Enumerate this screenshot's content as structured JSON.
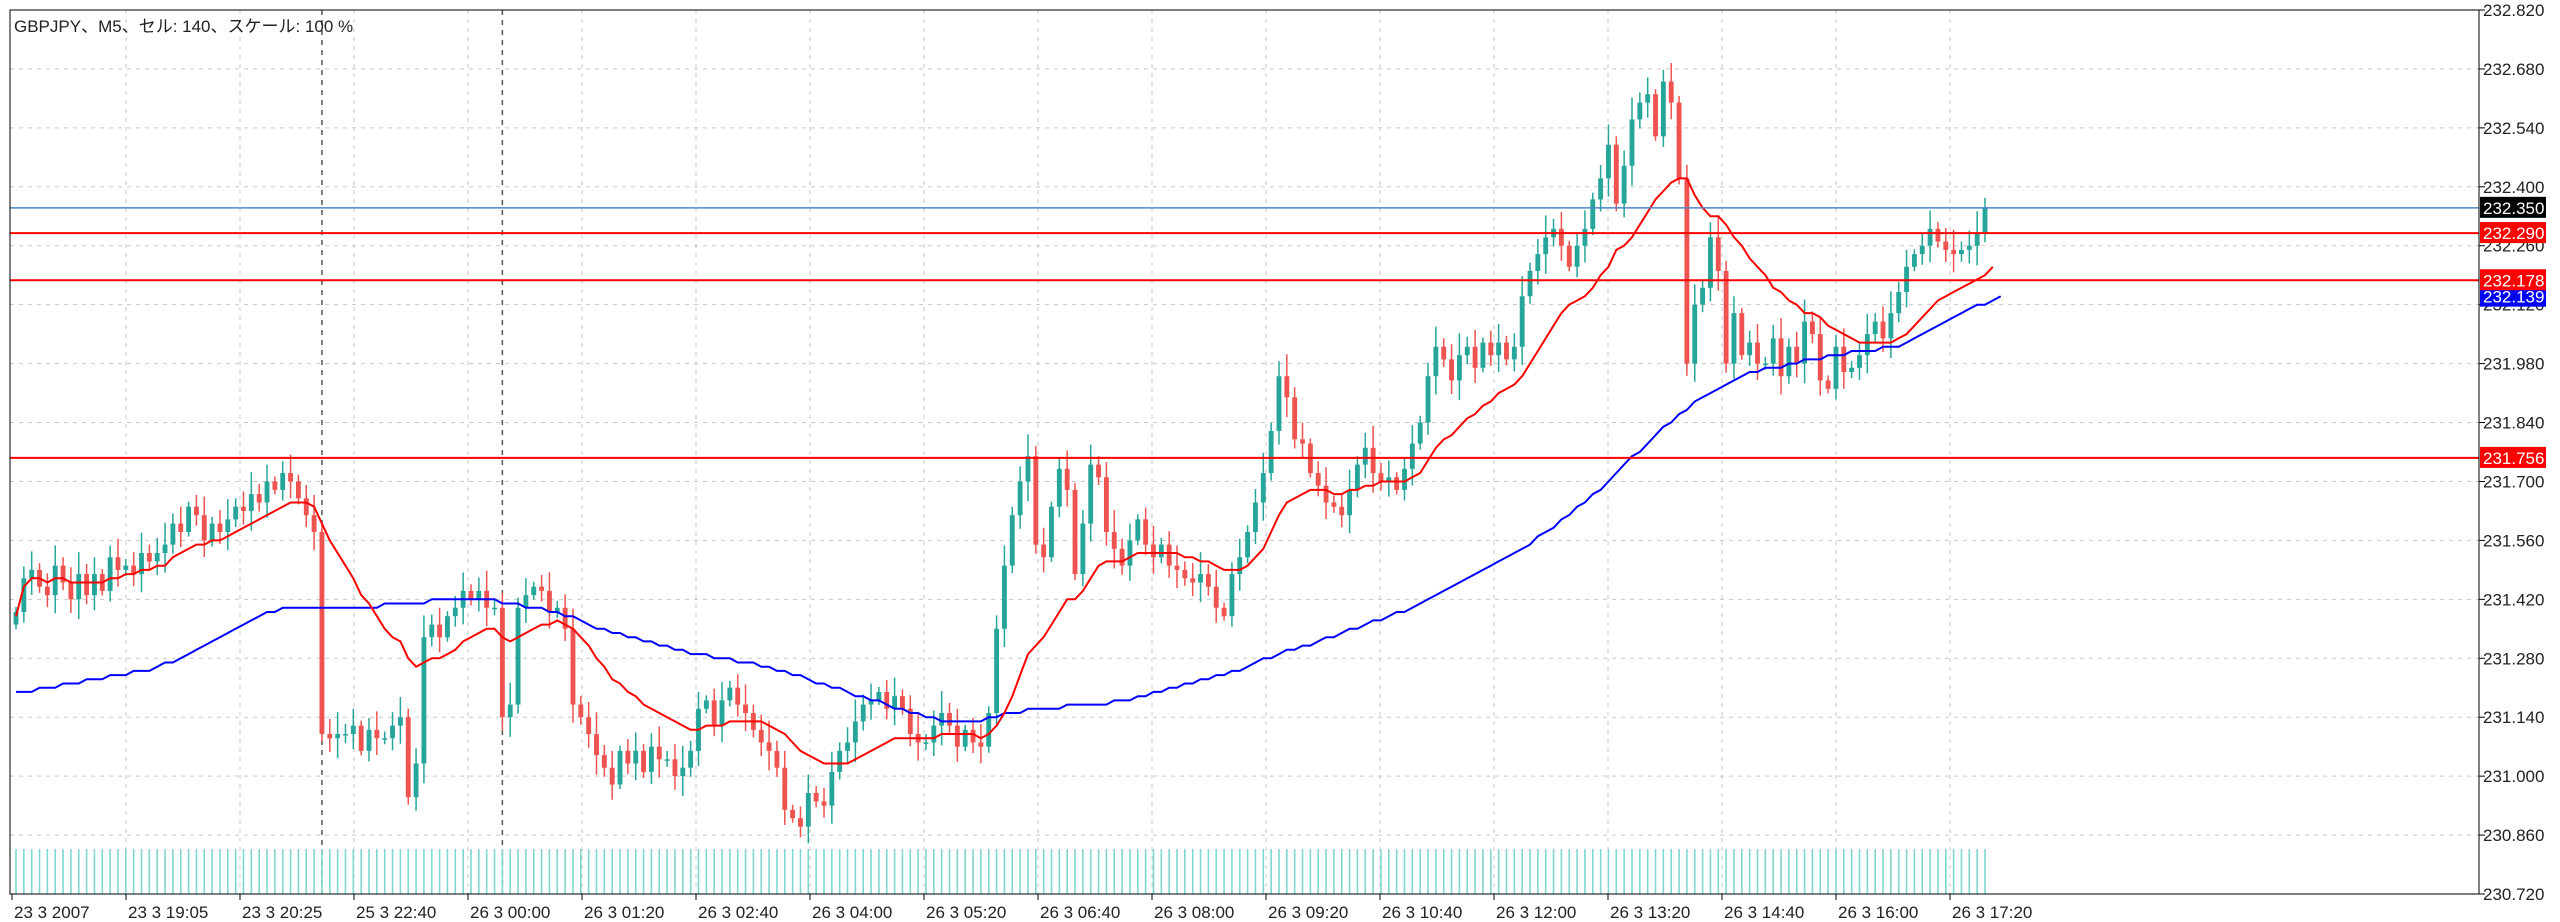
{
  "header": {
    "symbol_info": "GBPJPY、M5、セル: 140、スケール: 100 %"
  },
  "chart_data": {
    "type": "candlestick",
    "symbol": "GBPJPY",
    "timeframe": "M5",
    "ylim": [
      230.72,
      232.82
    ],
    "y_ticks": [
      "232.820",
      "232.680",
      "232.540",
      "232.400",
      "232.260",
      "232.120",
      "231.980",
      "231.840",
      "231.700",
      "231.560",
      "231.420",
      "231.280",
      "231.140",
      "231.000",
      "230.860",
      "230.720"
    ],
    "x_ticks": [
      "23 3 2007",
      "23 3 19:05",
      "23 3 20:25",
      "25 3 22:40",
      "26 3 00:00",
      "26 3 01:20",
      "26 3 02:40",
      "26 3 04:00",
      "26 3 05:20",
      "26 3 06:40",
      "26 3 08:00",
      "26 3 09:20",
      "26 3 10:40",
      "26 3 12:00",
      "26 3 13:20",
      "26 3 14:40",
      "26 3 16:00",
      "26 3 17:20"
    ],
    "grid": true,
    "period_separators_at_bar": [
      39,
      62
    ],
    "current_price": {
      "value": 232.35,
      "label": "232.350",
      "color": "#4a86c8"
    },
    "horizontal_lines": [
      {
        "value": 232.29,
        "label": "232.290",
        "color": "#ff0000"
      },
      {
        "value": 232.178,
        "label": "232.178",
        "color": "#ff0000"
      },
      {
        "value": 231.756,
        "label": "231.756",
        "color": "#ff0000"
      }
    ],
    "ma_label": {
      "value": 232.139,
      "label": "232.139",
      "color": "#0000ff"
    },
    "colors": {
      "bull": "#26a69a",
      "bear": "#ef5350",
      "fast_ma": "#ff0000",
      "slow_ma": "#0000ff",
      "volume": "#7fd7d0"
    },
    "series": [
      {
        "name": "close",
        "values": [
          231.39,
          231.47,
          231.49,
          231.45,
          231.43,
          231.5,
          231.46,
          231.42,
          231.48,
          231.43,
          231.48,
          231.44,
          231.52,
          231.49,
          231.5,
          231.48,
          231.53,
          231.51,
          231.53,
          231.55,
          231.6,
          231.58,
          231.64,
          231.62,
          231.56,
          231.6,
          231.58,
          231.61,
          231.64,
          231.63,
          231.67,
          231.65,
          231.7,
          231.68,
          231.72,
          231.7,
          231.66,
          231.62,
          231.58,
          231.1,
          231.09,
          231.1,
          231.1,
          231.12,
          231.06,
          231.11,
          231.09,
          231.09,
          231.12,
          231.14,
          230.95,
          231.03,
          231.33,
          231.36,
          231.33,
          231.38,
          231.4,
          231.44,
          231.42,
          231.44,
          231.4,
          231.4,
          231.14,
          231.17,
          231.4,
          231.43,
          231.45,
          231.44,
          231.39,
          231.4,
          231.35,
          231.17,
          231.14,
          231.1,
          231.05,
          231.02,
          230.98,
          231.06,
          231.03,
          231.06,
          231.01,
          231.07,
          231.04,
          231.04,
          231.0,
          231.02,
          231.06,
          231.16,
          231.18,
          231.12,
          231.18,
          231.21,
          231.17,
          231.15,
          231.11,
          231.08,
          231.06,
          231.02,
          230.92,
          230.9,
          230.88,
          230.96,
          230.94,
          230.93,
          231.01,
          231.06,
          231.08,
          231.13,
          231.17,
          231.18,
          231.2,
          231.16,
          231.19,
          231.16,
          231.1,
          231.08,
          231.08,
          231.12,
          231.15,
          231.12,
          231.07,
          231.11,
          231.08,
          231.07,
          231.15,
          231.35,
          231.5,
          231.62,
          231.7,
          231.76,
          231.55,
          231.52,
          231.64,
          231.73,
          231.68,
          231.48,
          231.6,
          231.74,
          231.71,
          231.58,
          231.54,
          231.5,
          231.56,
          231.61,
          231.55,
          231.52,
          231.55,
          231.5,
          231.49,
          231.47,
          231.46,
          231.48,
          231.45,
          231.4,
          231.38,
          231.48,
          231.52,
          231.58,
          231.65,
          231.72,
          231.82,
          231.95,
          231.9,
          231.8,
          231.79,
          231.72,
          231.69,
          231.65,
          231.64,
          231.62,
          231.68,
          231.74,
          231.78,
          231.72,
          231.7,
          231.71,
          231.68,
          231.73,
          231.79,
          231.84,
          231.95,
          232.02,
          231.99,
          231.94,
          232.0,
          232.02,
          231.97,
          232.03,
          232.0,
          232.03,
          231.99,
          232.02,
          232.14,
          232.2,
          232.24,
          232.28,
          232.3,
          232.26,
          232.21,
          232.26,
          232.3,
          232.37,
          232.42,
          232.5,
          232.36,
          232.45,
          232.56,
          232.6,
          232.62,
          232.52,
          232.65,
          232.6,
          232.42,
          231.98,
          232.12,
          232.16,
          232.28,
          232.2,
          231.98,
          232.1,
          232.0,
          232.03,
          231.98,
          231.98,
          232.04,
          231.95,
          232.02,
          231.98,
          232.08,
          232.05,
          231.94,
          231.92,
          232.02,
          231.96,
          231.97,
          232.0,
          232.05,
          232.08,
          232.04,
          232.1,
          232.15,
          232.21,
          232.24,
          232.26,
          232.3,
          232.27,
          232.25,
          232.24,
          232.25,
          232.26,
          232.29,
          232.35
        ]
      },
      {
        "name": "fast_ma",
        "values": [
          231.38,
          231.45,
          231.47,
          231.47,
          231.46,
          231.47,
          231.47,
          231.46,
          231.46,
          231.46,
          231.46,
          231.46,
          231.47,
          231.47,
          231.48,
          231.48,
          231.49,
          231.49,
          231.5,
          231.5,
          231.52,
          231.53,
          231.54,
          231.55,
          231.55,
          231.56,
          231.56,
          231.57,
          231.58,
          231.59,
          231.6,
          231.61,
          231.62,
          231.63,
          231.64,
          231.65,
          231.65,
          231.65,
          231.64,
          231.6,
          231.56,
          231.53,
          231.5,
          231.47,
          231.43,
          231.41,
          231.38,
          231.35,
          231.33,
          231.32,
          231.28,
          231.26,
          231.27,
          231.28,
          231.28,
          231.29,
          231.3,
          231.32,
          231.33,
          231.34,
          231.35,
          231.35,
          231.33,
          231.32,
          231.33,
          231.34,
          231.35,
          231.36,
          231.36,
          231.37,
          231.36,
          231.35,
          231.33,
          231.31,
          231.28,
          231.26,
          231.23,
          231.22,
          231.2,
          231.19,
          231.17,
          231.16,
          231.15,
          231.14,
          231.13,
          231.12,
          231.11,
          231.11,
          231.12,
          231.12,
          231.12,
          231.13,
          231.13,
          231.13,
          231.13,
          231.13,
          231.12,
          231.11,
          231.1,
          231.08,
          231.06,
          231.05,
          231.04,
          231.03,
          231.03,
          231.03,
          231.03,
          231.04,
          231.05,
          231.06,
          231.07,
          231.08,
          231.09,
          231.09,
          231.09,
          231.09,
          231.09,
          231.09,
          231.1,
          231.1,
          231.1,
          231.1,
          231.1,
          231.09,
          231.1,
          231.12,
          231.15,
          231.19,
          231.24,
          231.29,
          231.31,
          231.33,
          231.36,
          231.39,
          231.42,
          231.42,
          231.44,
          231.47,
          231.5,
          231.51,
          231.51,
          231.51,
          231.52,
          231.53,
          231.53,
          231.53,
          231.53,
          231.53,
          231.53,
          231.52,
          231.52,
          231.51,
          231.51,
          231.5,
          231.49,
          231.49,
          231.49,
          231.5,
          231.52,
          231.54,
          231.58,
          231.62,
          231.65,
          231.66,
          231.67,
          231.68,
          231.68,
          231.68,
          231.67,
          231.67,
          231.68,
          231.68,
          231.69,
          231.69,
          231.7,
          231.7,
          231.7,
          231.7,
          231.71,
          231.72,
          231.75,
          231.78,
          231.8,
          231.81,
          231.83,
          231.85,
          231.86,
          231.88,
          231.89,
          231.91,
          231.92,
          231.93,
          231.95,
          231.98,
          232.01,
          232.04,
          232.07,
          232.1,
          232.12,
          232.13,
          232.14,
          232.16,
          232.19,
          232.21,
          232.25,
          232.26,
          232.28,
          232.31,
          232.34,
          232.37,
          232.39,
          232.41,
          232.42,
          232.42,
          232.38,
          232.35,
          232.33,
          232.33,
          232.31,
          232.28,
          232.26,
          232.23,
          232.21,
          232.19,
          232.16,
          232.15,
          232.13,
          232.12,
          232.1,
          232.1,
          232.09,
          232.07,
          232.06,
          232.05,
          232.04,
          232.03,
          232.03,
          232.03,
          232.03,
          232.03,
          232.04,
          232.05,
          232.07,
          232.09,
          232.11,
          232.13,
          232.14,
          232.15,
          232.16,
          232.17,
          232.18,
          232.19,
          232.21
        ]
      },
      {
        "name": "slow_ma",
        "values": [
          231.2,
          231.2,
          231.2,
          231.21,
          231.21,
          231.21,
          231.22,
          231.22,
          231.22,
          231.23,
          231.23,
          231.23,
          231.24,
          231.24,
          231.24,
          231.25,
          231.25,
          231.25,
          231.26,
          231.27,
          231.27,
          231.28,
          231.29,
          231.3,
          231.31,
          231.32,
          231.33,
          231.34,
          231.35,
          231.36,
          231.37,
          231.38,
          231.39,
          231.39,
          231.4,
          231.4,
          231.4,
          231.4,
          231.4,
          231.4,
          231.4,
          231.4,
          231.4,
          231.4,
          231.4,
          231.4,
          231.4,
          231.41,
          231.41,
          231.41,
          231.41,
          231.41,
          231.41,
          231.42,
          231.42,
          231.42,
          231.42,
          231.42,
          231.42,
          231.42,
          231.42,
          231.42,
          231.41,
          231.41,
          231.41,
          231.4,
          231.4,
          231.4,
          231.39,
          231.39,
          231.38,
          231.38,
          231.37,
          231.36,
          231.35,
          231.35,
          231.34,
          231.34,
          231.33,
          231.33,
          231.32,
          231.32,
          231.31,
          231.31,
          231.3,
          231.3,
          231.29,
          231.29,
          231.29,
          231.28,
          231.28,
          231.28,
          231.27,
          231.27,
          231.27,
          231.26,
          231.26,
          231.25,
          231.25,
          231.24,
          231.24,
          231.23,
          231.22,
          231.22,
          231.21,
          231.21,
          231.2,
          231.19,
          231.19,
          231.18,
          231.18,
          231.17,
          231.16,
          231.16,
          231.15,
          231.15,
          231.14,
          231.14,
          231.13,
          231.13,
          231.13,
          231.13,
          231.13,
          231.13,
          231.14,
          231.14,
          231.15,
          231.15,
          231.15,
          231.16,
          231.16,
          231.16,
          231.16,
          231.16,
          231.17,
          231.17,
          231.17,
          231.17,
          231.17,
          231.17,
          231.18,
          231.18,
          231.18,
          231.19,
          231.19,
          231.2,
          231.2,
          231.21,
          231.21,
          231.22,
          231.22,
          231.23,
          231.23,
          231.24,
          231.24,
          231.25,
          231.25,
          231.26,
          231.27,
          231.28,
          231.28,
          231.29,
          231.3,
          231.3,
          231.31,
          231.31,
          231.32,
          231.33,
          231.33,
          231.34,
          231.35,
          231.35,
          231.36,
          231.37,
          231.37,
          231.38,
          231.39,
          231.39,
          231.4,
          231.41,
          231.42,
          231.43,
          231.44,
          231.45,
          231.46,
          231.47,
          231.48,
          231.49,
          231.5,
          231.51,
          231.52,
          231.53,
          231.54,
          231.55,
          231.57,
          231.58,
          231.59,
          231.61,
          231.62,
          231.64,
          231.65,
          231.67,
          231.68,
          231.7,
          231.72,
          231.74,
          231.76,
          231.77,
          231.79,
          231.81,
          231.83,
          231.84,
          231.86,
          231.87,
          231.89,
          231.9,
          231.91,
          231.92,
          231.93,
          231.94,
          231.95,
          231.96,
          231.96,
          231.97,
          231.97,
          231.97,
          231.98,
          231.98,
          231.99,
          231.99,
          231.99,
          232.0,
          232.0,
          232.0,
          232.01,
          232.01,
          232.01,
          232.01,
          232.02,
          232.02,
          232.02,
          232.03,
          232.04,
          232.05,
          232.06,
          232.07,
          232.08,
          232.09,
          232.1,
          232.11,
          232.12,
          232.12,
          232.13,
          232.14
        ]
      }
    ]
  }
}
